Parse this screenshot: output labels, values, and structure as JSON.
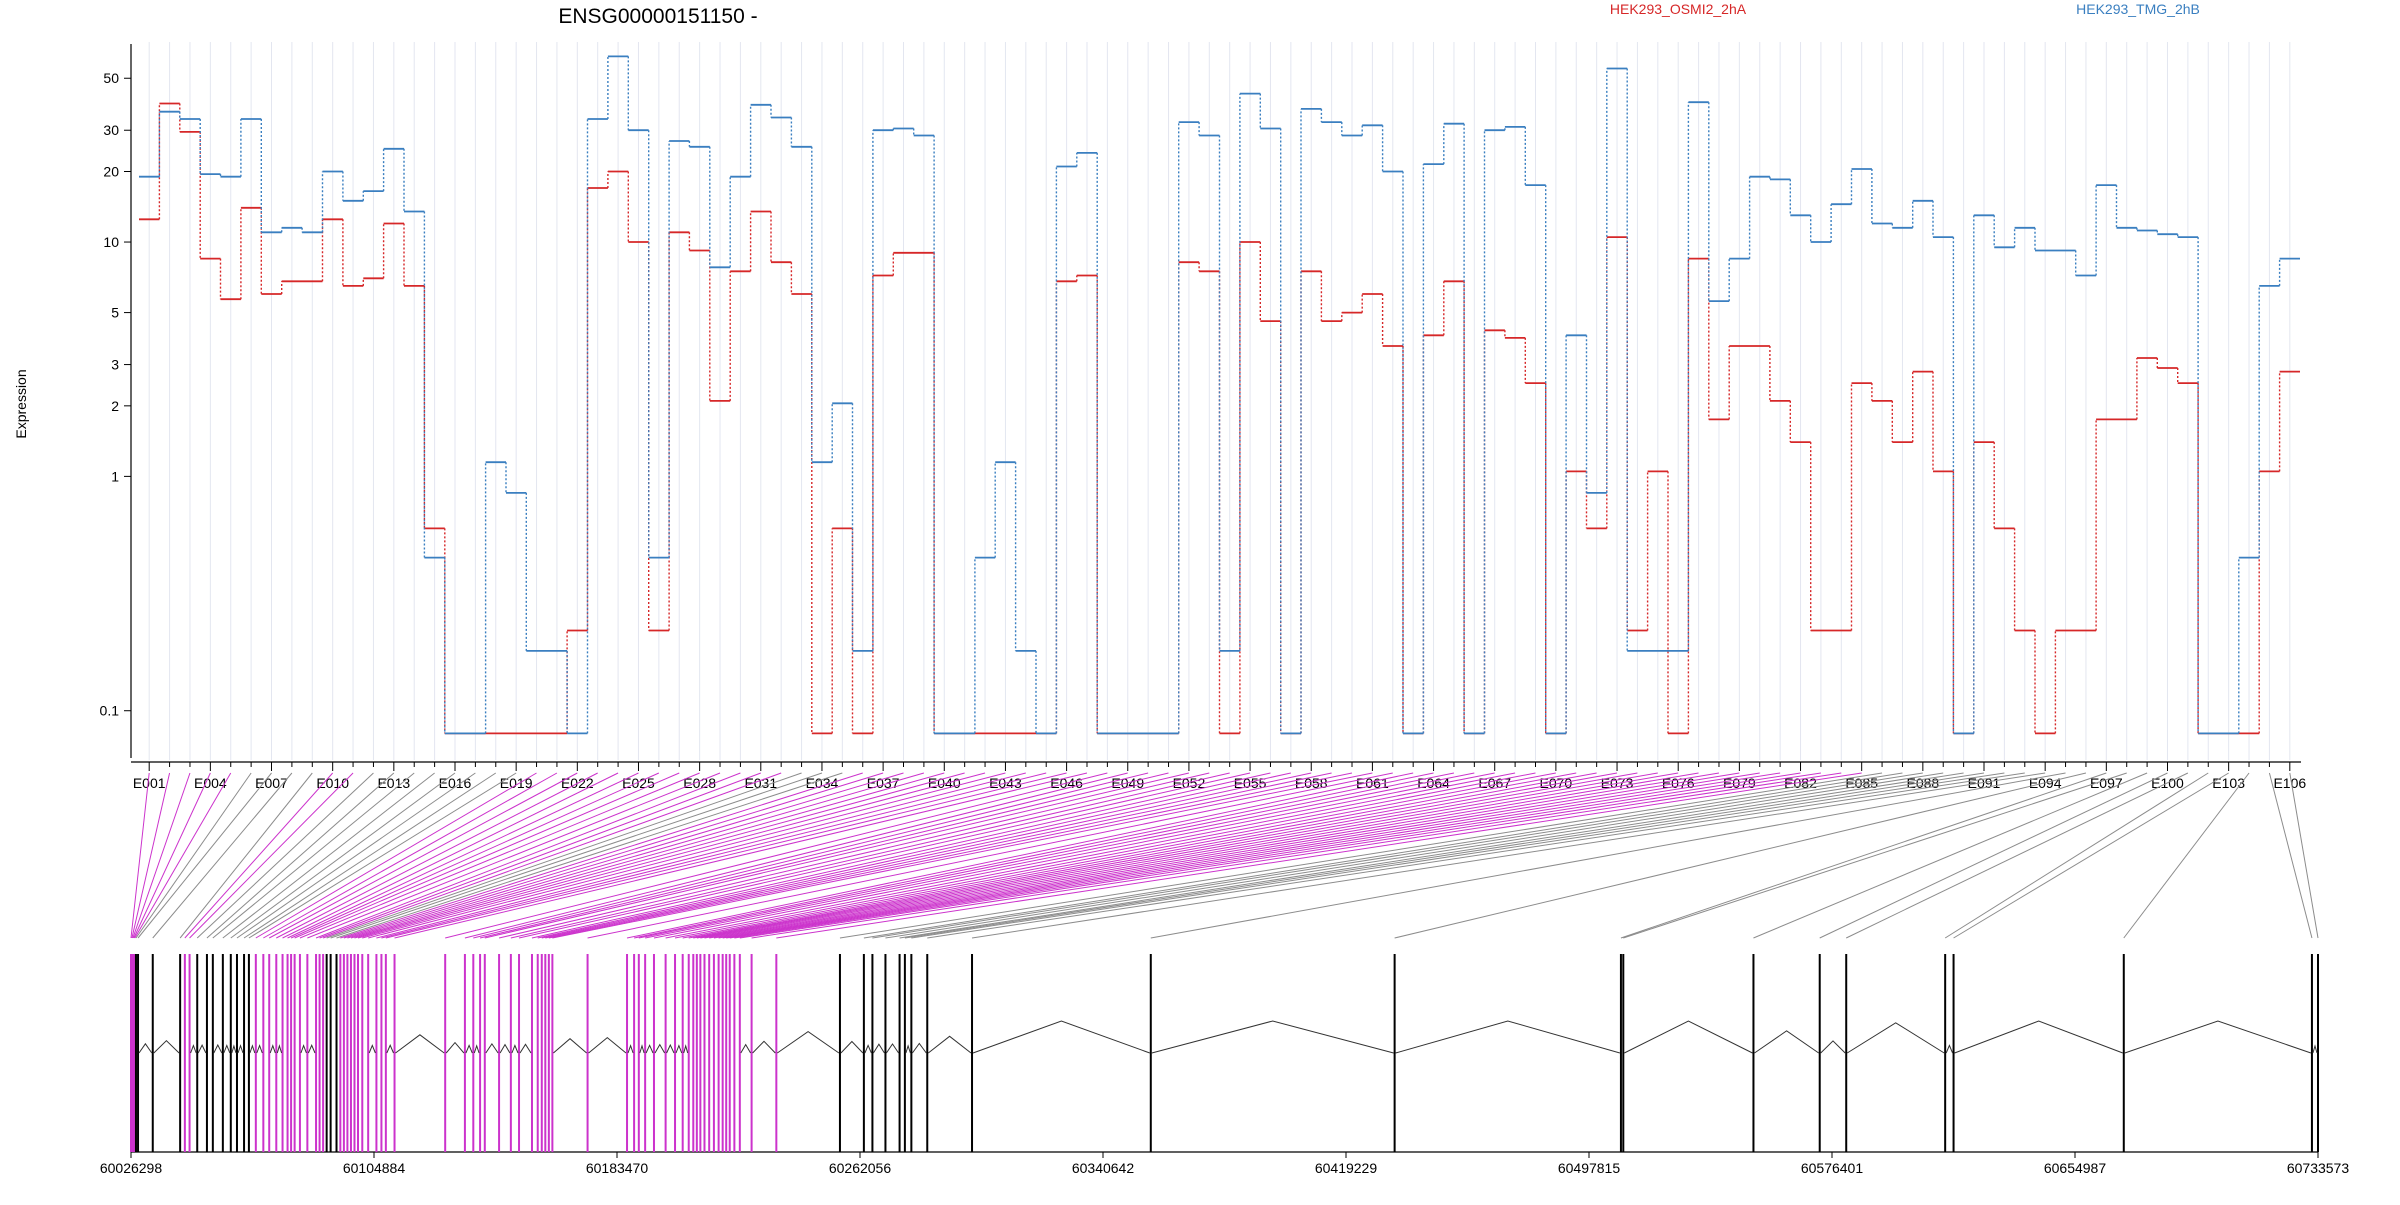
{
  "chart_data": {
    "type": "line",
    "title": "ENSG00000151150 -",
    "ylabel": "Expression",
    "y_scale": "log",
    "y_ticks": [
      0.1,
      1,
      2,
      3,
      5,
      10,
      20,
      30,
      50
    ],
    "ylim": [
      0.075,
      70
    ],
    "x_count": 106,
    "x_tick_labels": [
      "E001",
      "E004",
      "E007",
      "E010",
      "E013",
      "E016",
      "E019",
      "E022",
      "E025",
      "E028",
      "E031",
      "E034",
      "E037",
      "E040",
      "E043",
      "E046",
      "E049",
      "E052",
      "E055",
      "E058",
      "E061",
      "E064",
      "E067",
      "E070",
      "E073",
      "E076",
      "E079",
      "E082",
      "E085",
      "E088",
      "E091",
      "E094",
      "E097",
      "E100",
      "E103",
      "E106"
    ],
    "colors": {
      "HEK293_OSMI2_2hA": "#d62728",
      "HEK293_TMG_2hB": "#3a7fc0",
      "highlight": "#cc33cc"
    },
    "series": [
      {
        "name": "HEK293_OSMI2_2hA",
        "color": "#d62728",
        "values": [
          12.5,
          39,
          29.5,
          8.5,
          5.7,
          14,
          6,
          6.8,
          6.8,
          12.5,
          6.5,
          7,
          12,
          6.5,
          0.6,
          0.08,
          0.08,
          0.08,
          0.08,
          0.08,
          0.08,
          0.22,
          17,
          20,
          10,
          0.22,
          11,
          9.2,
          2.1,
          7.5,
          13.5,
          8.2,
          6,
          0.08,
          0.6,
          0.08,
          7.2,
          9,
          9,
          0.08,
          0.08,
          0.08,
          0.08,
          0.08,
          0.08,
          6.8,
          7.2,
          0.08,
          0.08,
          0.08,
          0.08,
          8.2,
          7.5,
          0.08,
          10,
          4.6,
          0.08,
          7.5,
          4.6,
          5,
          6,
          3.6,
          0.08,
          4,
          6.8,
          0.08,
          4.2,
          3.9,
          2.5,
          0.08,
          1.05,
          0.6,
          10.5,
          0.22,
          1.05,
          0.08,
          8.5,
          1.75,
          3.6,
          3.6,
          2.1,
          1.4,
          0.22,
          0.22,
          2.5,
          2.1,
          1.4,
          2.8,
          1.05,
          0.08,
          1.4,
          0.6,
          0.22,
          0.08,
          0.22,
          0.22,
          1.75,
          1.75,
          3.2,
          2.9,
          2.5,
          0.08,
          0.08,
          0.08,
          1.05,
          2.8
        ]
      },
      {
        "name": "HEK293_TMG_2hB",
        "color": "#3a7fc0",
        "values": [
          19,
          36,
          33.5,
          19.5,
          19,
          33.5,
          11,
          11.5,
          11,
          20,
          15,
          16.5,
          25,
          13.5,
          0.45,
          0.08,
          0.08,
          1.15,
          0.85,
          0.18,
          0.18,
          0.08,
          33.5,
          62,
          30,
          0.45,
          27,
          25.5,
          7.8,
          19,
          38.5,
          34,
          25.5,
          1.15,
          2.05,
          0.18,
          30,
          30.5,
          28.5,
          0.08,
          0.08,
          0.45,
          1.15,
          0.18,
          0.08,
          21,
          24,
          0.08,
          0.08,
          0.08,
          0.08,
          32.5,
          28.5,
          0.18,
          43,
          30.5,
          0.08,
          37,
          32.5,
          28.5,
          31.5,
          20,
          0.08,
          21.5,
          32,
          0.08,
          30,
          31,
          17.5,
          0.08,
          4,
          0.85,
          55,
          0.18,
          0.18,
          0.18,
          39.5,
          5.6,
          8.5,
          19,
          18.5,
          13,
          10,
          14.5,
          20.5,
          12,
          11.5,
          15,
          10.5,
          0.08,
          13,
          9.5,
          11.5,
          9.2,
          9.2,
          7.2,
          17.5,
          11.5,
          11.2,
          10.8,
          10.5,
          0.08,
          0.08,
          0.45,
          6.5,
          8.5
        ]
      }
    ],
    "highlighted_exons": [
      1,
      2,
      3,
      4,
      5,
      10,
      11,
      20,
      21,
      22,
      23,
      24,
      25,
      26,
      27,
      28,
      29,
      30,
      31,
      32,
      36,
      37,
      38,
      39,
      40,
      41,
      42,
      43,
      44,
      45,
      46,
      47,
      48,
      49,
      50,
      51,
      52,
      53,
      54,
      55,
      56,
      57,
      58,
      59,
      60,
      61,
      62,
      63,
      64,
      65,
      66,
      67,
      68,
      69,
      70,
      71,
      72,
      73,
      74,
      75,
      76,
      77,
      78,
      79,
      80,
      81,
      82,
      83,
      84,
      85
    ],
    "genomic_axis": {
      "start": 60026298,
      "end": 60733573,
      "tick_labels": [
        "60026298",
        "60104884",
        "60183470",
        "60262056",
        "60340642",
        "60419229",
        "60497815",
        "60576401",
        "60654987",
        "60733573"
      ]
    },
    "exon_positions": [
      60026298,
      60026700,
      60027100,
      60027500,
      60028000,
      60029000,
      60042000,
      60044000,
      60046000,
      60050500,
      60053000,
      60057500,
      60060000,
      60063000,
      60065000,
      60068500,
      60071000,
      60074000,
      60076500,
      60078000,
      60079500,
      60082000,
      60086000,
      60087500,
      60089000,
      60090500,
      60093000,
      60094500,
      60096000,
      60097500,
      60099000,
      60100500,
      60103000,
      60106500,
      60108000,
      60110500,
      60132000,
      60136000,
      60139000,
      60141000,
      60148000,
      60151000,
      60156500,
      60158500,
      60160000,
      60161500,
      60163000,
      60186000,
      60189000,
      60191000,
      60194000,
      60199000,
      60203000,
      60206000,
      60208000,
      60209500,
      60211000,
      60213000,
      60215000,
      60217000,
      60218500,
      60220000,
      60222000,
      60224500,
      60235000,
      60262000,
      60264500,
      60270000,
      60276000,
      60277000,
      60282000,
      60301000,
      60390000,
      60508000,
      60509000,
      60572000,
      60573000,
      60615000,
      60616000,
      60731000,
      60733573
    ]
  }
}
